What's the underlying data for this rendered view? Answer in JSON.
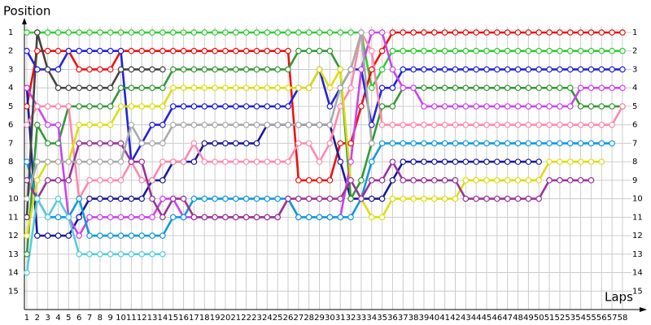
{
  "chart_data": {
    "type": "line",
    "y_label": "Position",
    "x_label": "Laps",
    "x": [
      1,
      2,
      3,
      4,
      5,
      6,
      7,
      8,
      9,
      10,
      11,
      12,
      13,
      14,
      15,
      16,
      17,
      18,
      19,
      20,
      21,
      22,
      23,
      24,
      25,
      26,
      27,
      28,
      29,
      30,
      31,
      32,
      33,
      34,
      35,
      36,
      37,
      38,
      39,
      40,
      41,
      42,
      43,
      44,
      45,
      46,
      47,
      48,
      49,
      50,
      51,
      52,
      53,
      54,
      55,
      56,
      57,
      58
    ],
    "xlim": [
      0.77,
      59.95
    ],
    "xticks": [
      1,
      2,
      3,
      4,
      5,
      6,
      7,
      8,
      9,
      10,
      11,
      12,
      13,
      14,
      15,
      16,
      17,
      18,
      19,
      20,
      21,
      22,
      23,
      24,
      25,
      26,
      27,
      28,
      29,
      30,
      31,
      32,
      33,
      34,
      35,
      36,
      37,
      38,
      39,
      40,
      41,
      42,
      43,
      44,
      45,
      46,
      47,
      48,
      49,
      50,
      51,
      52,
      53,
      54,
      55,
      56,
      57,
      58
    ],
    "ylim": [
      16,
      0.5
    ],
    "yticks": [
      1,
      2,
      3,
      4,
      5,
      6,
      7,
      8,
      9,
      10,
      11,
      12,
      13,
      14,
      15
    ],
    "grid": true,
    "series": [
      {
        "color": "#33cc33",
        "values": [
          1,
          1,
          1,
          1,
          1,
          1,
          1,
          1,
          1,
          1,
          1,
          1,
          1,
          1,
          1,
          1,
          1,
          1,
          1,
          1,
          1,
          1,
          1,
          1,
          1,
          1,
          1,
          1,
          1,
          1,
          1,
          1,
          1,
          4,
          3,
          2,
          2,
          2,
          2,
          2,
          2,
          2,
          2,
          2,
          2,
          2,
          2,
          2,
          2,
          2,
          2,
          2,
          2,
          2,
          2,
          2,
          2,
          2
        ]
      },
      {
        "color": "#ee1111",
        "values": [
          5,
          2,
          2,
          2,
          2,
          3,
          3,
          3,
          3,
          2,
          2,
          2,
          2,
          2,
          2,
          2,
          2,
          2,
          2,
          2,
          2,
          2,
          2,
          2,
          2,
          2,
          9,
          9,
          9,
          9,
          7,
          7,
          5,
          3,
          2,
          1,
          1,
          1,
          1,
          1,
          1,
          1,
          1,
          1,
          1,
          1,
          1,
          1,
          1,
          1,
          1,
          1,
          1,
          1,
          1,
          1,
          1,
          1
        ]
      },
      {
        "color": "#2222dd",
        "values": [
          2,
          3,
          3,
          3,
          2,
          2,
          2,
          2,
          2,
          2,
          8,
          7,
          6,
          6,
          5,
          5,
          5,
          5,
          5,
          5,
          5,
          5,
          5,
          5,
          5,
          5,
          4,
          4,
          3,
          5,
          4,
          3,
          3,
          6,
          4,
          4,
          3,
          3,
          3,
          3,
          3,
          3,
          3,
          3,
          3,
          3,
          3,
          3,
          3,
          3,
          3,
          3,
          3,
          3,
          3,
          3,
          3,
          3
        ]
      },
      {
        "color": "#1a1a99",
        "values": [
          4,
          12,
          12,
          12,
          12,
          11,
          10,
          10,
          10,
          10,
          10,
          10,
          9,
          9,
          8,
          8,
          8,
          7,
          7,
          7,
          7,
          7,
          7,
          6,
          6,
          6,
          6,
          6,
          6,
          6,
          8,
          10,
          10,
          10,
          10,
          9,
          8,
          8,
          8,
          8,
          8,
          8,
          8,
          8,
          8,
          8,
          8,
          8,
          8,
          8,
          null,
          null,
          null,
          null,
          null,
          null,
          null,
          null
        ]
      },
      {
        "color": "#339933",
        "values": [
          13,
          6,
          7,
          7,
          5,
          5,
          5,
          5,
          5,
          4,
          4,
          4,
          4,
          4,
          3,
          3,
          3,
          3,
          3,
          3,
          3,
          3,
          3,
          3,
          3,
          3,
          2,
          2,
          2,
          2,
          3,
          10,
          9,
          7,
          5,
          5,
          4,
          4,
          4,
          4,
          4,
          4,
          4,
          4,
          4,
          4,
          4,
          4,
          4,
          4,
          4,
          4,
          4,
          5,
          5,
          5,
          5,
          5
        ]
      },
      {
        "color": "#cc44ee",
        "values": [
          4,
          5,
          6,
          6,
          11,
          12,
          11,
          11,
          11,
          11,
          11,
          11,
          11,
          10,
          10,
          11,
          11,
          11,
          11,
          11,
          11,
          11,
          11,
          11,
          11,
          10,
          11,
          11,
          11,
          11,
          11,
          8,
          3,
          1,
          1,
          3,
          4,
          4,
          5,
          5,
          5,
          5,
          5,
          5,
          5,
          5,
          5,
          5,
          5,
          5,
          5,
          5,
          5,
          4,
          4,
          4,
          4,
          4
        ]
      },
      {
        "color": "#ff88aa",
        "values": [
          6,
          5,
          5,
          5,
          5,
          10,
          9,
          9,
          9,
          9,
          8,
          9,
          9,
          8,
          8,
          8,
          7,
          8,
          8,
          8,
          8,
          8,
          8,
          8,
          8,
          8,
          7,
          7,
          8,
          7,
          5,
          4,
          1,
          2,
          6,
          6,
          6,
          6,
          6,
          6,
          6,
          6,
          6,
          6,
          6,
          6,
          6,
          6,
          6,
          6,
          6,
          6,
          6,
          6,
          6,
          6,
          6,
          5
        ]
      },
      {
        "color": "#1199dd",
        "values": [
          8,
          10,
          11,
          11,
          11,
          10,
          12,
          12,
          12,
          12,
          12,
          12,
          12,
          12,
          11,
          11,
          10,
          10,
          10,
          10,
          10,
          10,
          10,
          10,
          10,
          10,
          11,
          11,
          11,
          11,
          11,
          11,
          10,
          8,
          7,
          7,
          7,
          7,
          7,
          7,
          7,
          7,
          7,
          7,
          7,
          7,
          7,
          7,
          7,
          7,
          7,
          7,
          7,
          7,
          7,
          7,
          7,
          null
        ]
      },
      {
        "color": "#dddd11",
        "values": [
          12,
          9,
          8,
          8,
          8,
          6,
          6,
          6,
          6,
          5,
          5,
          5,
          5,
          5,
          4,
          4,
          4,
          4,
          4,
          4,
          4,
          4,
          4,
          4,
          4,
          4,
          4,
          4,
          3,
          4,
          3,
          9,
          10,
          11,
          11,
          10,
          10,
          10,
          10,
          10,
          10,
          10,
          9,
          9,
          9,
          9,
          9,
          9,
          9,
          9,
          8,
          8,
          8,
          8,
          8,
          8,
          null,
          null
        ]
      },
      {
        "color": "#993399",
        "values": [
          9,
          10,
          9,
          9,
          9,
          7,
          7,
          7,
          7,
          7,
          8,
          8,
          10,
          11,
          10,
          10,
          11,
          11,
          11,
          11,
          11,
          11,
          11,
          11,
          11,
          10,
          10,
          10,
          10,
          10,
          10,
          9,
          10,
          9,
          9,
          8,
          9,
          9,
          9,
          9,
          9,
          9,
          10,
          10,
          10,
          10,
          10,
          10,
          10,
          10,
          9,
          9,
          9,
          9,
          9,
          null,
          null,
          null
        ]
      },
      {
        "color": "#aaaaaa",
        "values": [
          10,
          8,
          8,
          8,
          8,
          8,
          8,
          8,
          8,
          8,
          6,
          7,
          7,
          7,
          6,
          6,
          6,
          6,
          6,
          6,
          6,
          6,
          6,
          6,
          6,
          6,
          6,
          6,
          6,
          6,
          4,
          3,
          1,
          7,
          null,
          null,
          null,
          null,
          null,
          null,
          null,
          null,
          null,
          null,
          null,
          null,
          null,
          null,
          null,
          null,
          null,
          null,
          null,
          null,
          null,
          null,
          null,
          null
        ]
      },
      {
        "color": "#444444",
        "values": [
          11,
          1,
          3,
          4,
          4,
          4,
          4,
          4,
          4,
          3,
          3,
          3,
          3,
          3,
          null,
          null,
          null,
          null,
          null,
          null,
          null,
          null,
          null,
          null,
          null,
          null,
          null,
          null,
          null,
          null,
          null,
          null,
          null,
          null,
          null,
          null,
          null,
          null,
          null,
          null,
          null,
          null,
          null,
          null,
          null,
          null,
          null,
          null,
          null,
          null,
          null,
          null,
          null,
          null,
          null,
          null,
          null,
          null
        ]
      },
      {
        "color": "#55ccdd",
        "values": [
          14,
          10,
          11,
          10,
          11,
          13,
          13,
          13,
          13,
          13,
          13,
          13,
          13,
          13,
          null,
          null,
          null,
          null,
          null,
          null,
          null,
          null,
          null,
          null,
          null,
          null,
          null,
          null,
          null,
          null,
          null,
          null,
          null,
          null,
          null,
          null,
          null,
          null,
          null,
          null,
          null,
          null,
          null,
          null,
          null,
          null,
          null,
          null,
          null,
          null,
          null,
          null,
          null,
          null,
          null,
          null,
          null,
          null
        ]
      }
    ]
  }
}
